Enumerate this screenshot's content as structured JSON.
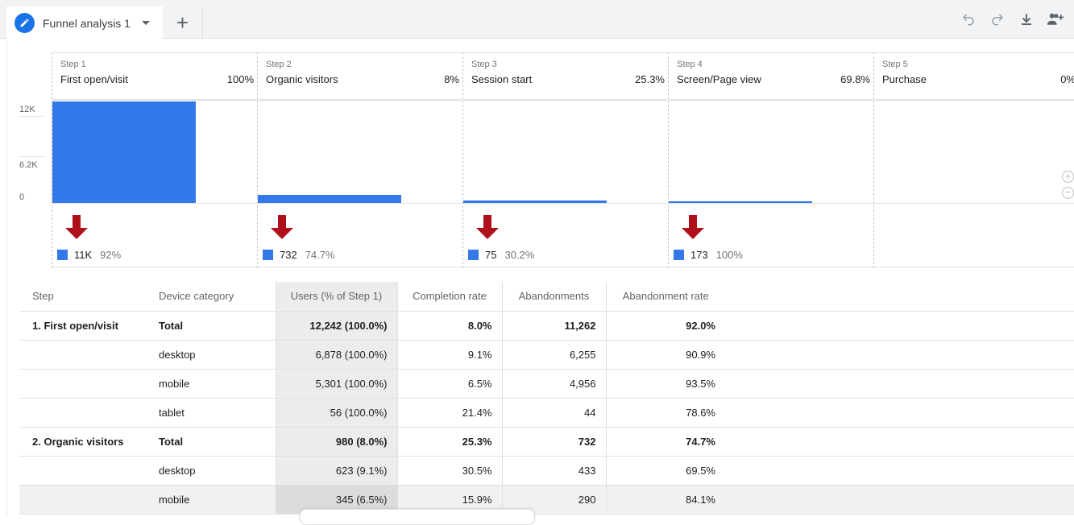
{
  "tab": {
    "title": "Funnel analysis 1",
    "add_label": "+"
  },
  "toolbar": {
    "icons": [
      "undo-icon",
      "redo-icon",
      "download-icon",
      "share-icon"
    ]
  },
  "chart_data": {
    "type": "bar",
    "y_ticks": [
      "12K",
      "6.2K",
      "0"
    ],
    "ylim": [
      0,
      12242
    ],
    "steps": [
      {
        "step": "Step 1",
        "name": "First open/visit",
        "pct": "100%",
        "users": 12242,
        "abandon": "11K",
        "abandon_rate": "92%"
      },
      {
        "step": "Step 2",
        "name": "Organic visitors",
        "pct": "8%",
        "users": 980,
        "abandon": "732",
        "abandon_rate": "74.7%"
      },
      {
        "step": "Step 3",
        "name": "Session start",
        "pct": "25.3%",
        "users": 248,
        "abandon": "75",
        "abandon_rate": "30.2%"
      },
      {
        "step": "Step 4",
        "name": "Screen/Page view",
        "pct": "69.8%",
        "users": 173,
        "abandon": "173",
        "abandon_rate": "100%"
      },
      {
        "step": "Step 5",
        "name": "Purchase",
        "pct": "0%",
        "users": 0
      }
    ],
    "colors": {
      "bar": "#3479e9",
      "arrow": "#b0101a"
    }
  },
  "table": {
    "headers": [
      "Step",
      "Device category",
      "Users (% of Step 1)",
      "Completion rate",
      "Abandonments",
      "Abandonment rate"
    ],
    "rows": [
      {
        "step": "1. First open/visit",
        "device": "Total",
        "users": "12,242 (100.0%)",
        "completion": "8.0%",
        "abandon": "11,262",
        "rate": "92.0%"
      },
      {
        "step": "",
        "device": "desktop",
        "users": "6,878 (100.0%)",
        "completion": "9.1%",
        "abandon": "6,255",
        "rate": "90.9%"
      },
      {
        "step": "",
        "device": "mobile",
        "users": "5,301 (100.0%)",
        "completion": "6.5%",
        "abandon": "4,956",
        "rate": "93.5%"
      },
      {
        "step": "",
        "device": "tablet",
        "users": "56 (100.0%)",
        "completion": "21.4%",
        "abandon": "44",
        "rate": "78.6%"
      },
      {
        "step": "2. Organic visitors",
        "device": "Total",
        "users": "980 (8.0%)",
        "completion": "25.3%",
        "abandon": "732",
        "rate": "74.7%"
      },
      {
        "step": "",
        "device": "desktop",
        "users": "623 (9.1%)",
        "completion": "30.5%",
        "abandon": "433",
        "rate": "69.5%"
      },
      {
        "step": "",
        "device": "mobile",
        "users": "345 (6.5%)",
        "completion": "15.9%",
        "abandon": "290",
        "rate": "84.1%"
      }
    ]
  }
}
